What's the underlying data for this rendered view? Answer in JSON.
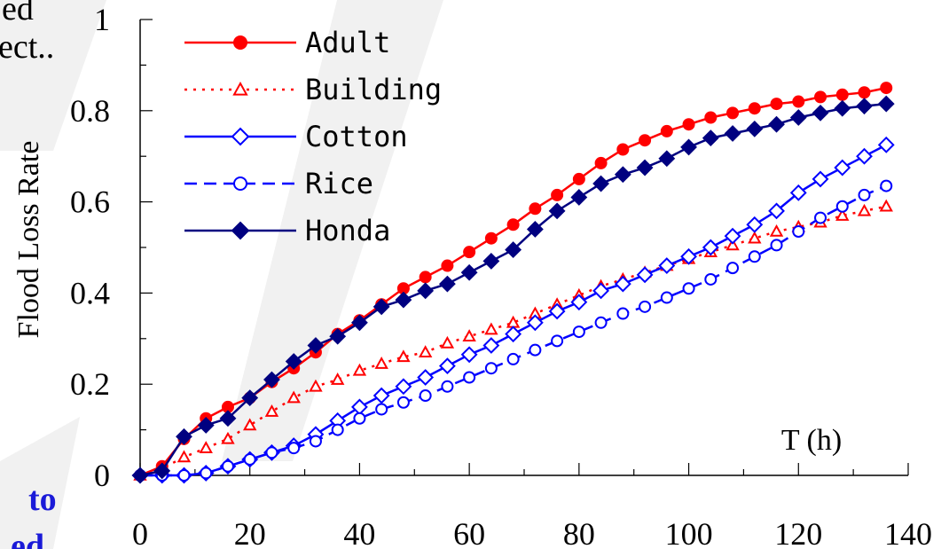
{
  "fragments": {
    "top_left_1": "ed",
    "top_left_2": "ect..",
    "bottom_left_1": "to",
    "bottom_left_2": "ed"
  },
  "colors": {
    "red": "#ff0000",
    "blue": "#0000ff",
    "navy": "#000080",
    "watermark": "#efefef"
  },
  "chart_data": {
    "type": "line",
    "xlabel": "T (h)",
    "ylabel": "Flood  Loss  Rate",
    "xlim": [
      0,
      140
    ],
    "ylim": [
      0,
      1
    ],
    "x_ticks": [
      "0",
      "20",
      "40",
      "60",
      "80",
      "100",
      "120",
      "140"
    ],
    "y_ticks": [
      "0",
      "0.2",
      "0.4",
      "0.6",
      "0.8",
      "1"
    ],
    "x": [
      0,
      4,
      8,
      12,
      16,
      20,
      24,
      28,
      32,
      36,
      40,
      44,
      48,
      52,
      56,
      60,
      64,
      68,
      72,
      76,
      80,
      84,
      88,
      92,
      96,
      100,
      104,
      108,
      112,
      116,
      120,
      124,
      128,
      132,
      136
    ],
    "legend_position": "top-left",
    "series": [
      {
        "name": "Adult",
        "color": "#ff0000",
        "line": "solid",
        "marker": "circle-filled",
        "values": [
          0.0,
          0.02,
          0.08,
          0.125,
          0.15,
          0.17,
          0.205,
          0.235,
          0.27,
          0.31,
          0.34,
          0.375,
          0.41,
          0.435,
          0.46,
          0.49,
          0.52,
          0.55,
          0.585,
          0.615,
          0.65,
          0.685,
          0.715,
          0.735,
          0.755,
          0.77,
          0.785,
          0.795,
          0.805,
          0.815,
          0.82,
          0.83,
          0.835,
          0.84,
          0.85
        ]
      },
      {
        "name": "Building",
        "color": "#ff0000",
        "line": "dotted",
        "marker": "triangle-open",
        "values": [
          0.0,
          0.015,
          0.04,
          0.06,
          0.08,
          0.11,
          0.14,
          0.17,
          0.195,
          0.21,
          0.23,
          0.245,
          0.26,
          0.27,
          0.29,
          0.305,
          0.32,
          0.335,
          0.355,
          0.375,
          0.395,
          0.415,
          0.43,
          0.445,
          0.46,
          0.475,
          0.49,
          0.505,
          0.52,
          0.535,
          0.545,
          0.555,
          0.57,
          0.58,
          0.59
        ]
      },
      {
        "name": "Cotton",
        "color": "#0000ff",
        "line": "solid",
        "marker": "diamond-open",
        "values": [
          0.0,
          0.0,
          0.0,
          0.005,
          0.02,
          0.035,
          0.05,
          0.065,
          0.09,
          0.12,
          0.15,
          0.175,
          0.195,
          0.215,
          0.24,
          0.265,
          0.285,
          0.31,
          0.335,
          0.36,
          0.38,
          0.405,
          0.42,
          0.44,
          0.46,
          0.48,
          0.5,
          0.525,
          0.55,
          0.58,
          0.62,
          0.65,
          0.675,
          0.7,
          0.725
        ]
      },
      {
        "name": "Rice",
        "color": "#0000ff",
        "line": "dashed",
        "marker": "circle-open",
        "values": [
          0.0,
          0.0,
          0.0,
          0.005,
          0.02,
          0.035,
          0.05,
          0.06,
          0.075,
          0.1,
          0.125,
          0.145,
          0.16,
          0.175,
          0.195,
          0.215,
          0.235,
          0.255,
          0.275,
          0.295,
          0.315,
          0.335,
          0.355,
          0.37,
          0.39,
          0.41,
          0.43,
          0.455,
          0.48,
          0.505,
          0.535,
          0.565,
          0.59,
          0.615,
          0.635
        ]
      },
      {
        "name": "Honda",
        "color": "#000080",
        "line": "solid",
        "marker": "diamond-filled",
        "values": [
          0.0,
          0.01,
          0.085,
          0.11,
          0.125,
          0.17,
          0.21,
          0.25,
          0.285,
          0.305,
          0.335,
          0.37,
          0.385,
          0.405,
          0.42,
          0.445,
          0.47,
          0.495,
          0.54,
          0.58,
          0.61,
          0.64,
          0.66,
          0.675,
          0.695,
          0.72,
          0.74,
          0.75,
          0.76,
          0.77,
          0.785,
          0.795,
          0.805,
          0.81,
          0.815
        ]
      }
    ]
  }
}
